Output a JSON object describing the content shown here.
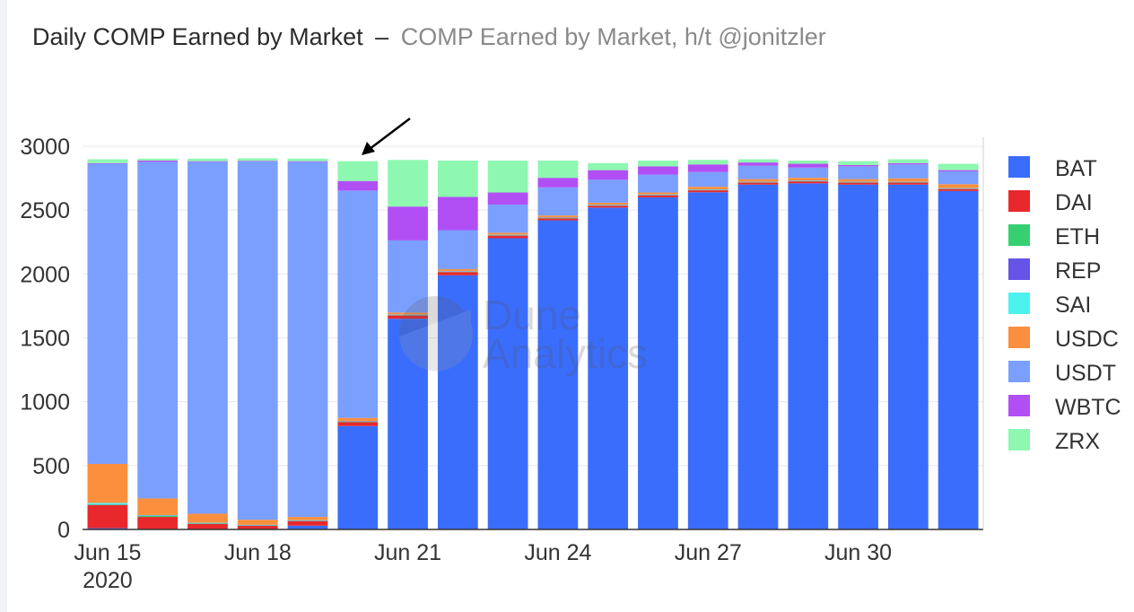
{
  "header": {
    "title": "Daily COMP Earned by Market",
    "separator": "–",
    "subtitle": "COMP Earned by Market, h/t @jonitzler"
  },
  "watermark": {
    "line1": "Dune",
    "line2": "Analytics"
  },
  "colors": {
    "BAT": "#3b6dfd",
    "DAI": "#e8282c",
    "ETH": "#36d072",
    "REP": "#6454e8",
    "SAI": "#4cf2ee",
    "USDC": "#fb8f3d",
    "USDT": "#7b9ffe",
    "WBTC": "#b14ff5",
    "ZRX": "#8ef7b0",
    "grid": "#e8e8e8",
    "axis": "#333333",
    "tick_text": "#333333"
  },
  "chart_data": {
    "type": "bar",
    "stacked": true,
    "title": "Daily COMP Earned by Market",
    "xlabel": "",
    "ylabel": "",
    "ylim": [
      0,
      3000
    ],
    "yticks": [
      0,
      500,
      1000,
      1500,
      2000,
      2500,
      3000
    ],
    "grid": true,
    "legend_position": "right",
    "x_tick_labels": [
      {
        "index": 0,
        "label": "Jun 15",
        "sublabel": "2020"
      },
      {
        "index": 3,
        "label": "Jun 18",
        "sublabel": ""
      },
      {
        "index": 6,
        "label": "Jun 21",
        "sublabel": ""
      },
      {
        "index": 9,
        "label": "Jun 24",
        "sublabel": ""
      },
      {
        "index": 12,
        "label": "Jun 27",
        "sublabel": ""
      },
      {
        "index": 15,
        "label": "Jun 30",
        "sublabel": ""
      }
    ],
    "categories": [
      "2020-06-15",
      "2020-06-16",
      "2020-06-17",
      "2020-06-18",
      "2020-06-19",
      "2020-06-20",
      "2020-06-21",
      "2020-06-22",
      "2020-06-23",
      "2020-06-24",
      "2020-06-25",
      "2020-06-26",
      "2020-06-27",
      "2020-06-28",
      "2020-06-29",
      "2020-06-30",
      "2020-07-01",
      "2020-07-02"
    ],
    "series": [
      {
        "name": "BAT",
        "values": [
          10,
          3,
          3,
          3,
          30,
          810,
          1650,
          1990,
          2280,
          2420,
          2520,
          2600,
          2640,
          2700,
          2710,
          2700,
          2700,
          2650
        ]
      },
      {
        "name": "DAI",
        "values": [
          180,
          95,
          40,
          25,
          35,
          30,
          25,
          25,
          20,
          15,
          15,
          15,
          15,
          15,
          15,
          15,
          15,
          15
        ]
      },
      {
        "name": "ETH",
        "values": [
          5,
          10,
          5,
          3,
          3,
          3,
          3,
          3,
          3,
          3,
          3,
          3,
          3,
          3,
          3,
          3,
          3,
          3
        ]
      },
      {
        "name": "REP",
        "values": [
          3,
          3,
          3,
          3,
          3,
          3,
          3,
          3,
          3,
          3,
          3,
          3,
          3,
          3,
          3,
          3,
          3,
          3
        ]
      },
      {
        "name": "SAI",
        "values": [
          10,
          2,
          2,
          2,
          2,
          2,
          2,
          2,
          2,
          2,
          2,
          2,
          2,
          2,
          2,
          2,
          2,
          2
        ]
      },
      {
        "name": "USDC",
        "values": [
          305,
          130,
          70,
          40,
          25,
          25,
          15,
          15,
          15,
          15,
          15,
          15,
          20,
          20,
          20,
          20,
          25,
          30
        ]
      },
      {
        "name": "USDT",
        "values": [
          2350,
          2635,
          2755,
          2805,
          2780,
          1780,
          565,
          305,
          220,
          220,
          180,
          140,
          115,
          105,
          80,
          100,
          110,
          100
        ]
      },
      {
        "name": "WBTC",
        "values": [
          5,
          10,
          5,
          5,
          5,
          75,
          265,
          260,
          95,
          75,
          75,
          65,
          60,
          25,
          30,
          10,
          10,
          10
        ]
      },
      {
        "name": "ZRX",
        "values": [
          30,
          15,
          20,
          20,
          20,
          155,
          365,
          285,
          250,
          135,
          55,
          45,
          35,
          25,
          25,
          30,
          30,
          50
        ]
      }
    ]
  }
}
